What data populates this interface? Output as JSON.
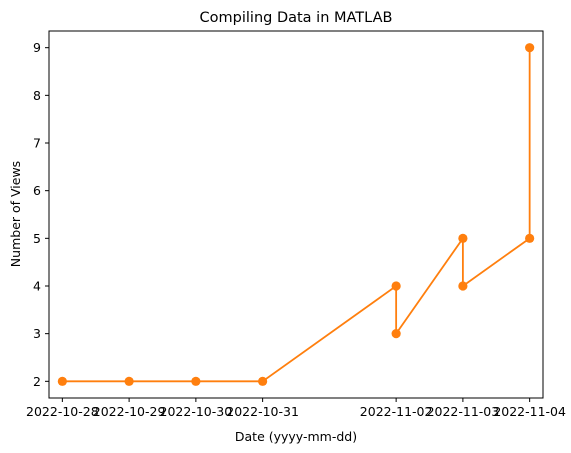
{
  "chart_data": {
    "type": "line",
    "title": "Compiling Data in MATLAB",
    "xlabel": "Date (yyyy-mm-dd)",
    "ylabel": "Number of Views",
    "x_tick_labels": [
      "2022-10-28",
      "2022-10-29",
      "2022-10-30",
      "2022-10-31",
      "2022-11-02",
      "2022-11-03",
      "2022-11-04"
    ],
    "y_ticks": [
      2,
      3,
      4,
      5,
      6,
      7,
      8,
      9
    ],
    "xlim": [
      "2022-10-27T19:12",
      "2022-11-04T04:48"
    ],
    "ylim": [
      1.65,
      9.35
    ],
    "grid": false,
    "series": [
      {
        "color": "#ff7f0e",
        "marker": "circle",
        "points": [
          {
            "x": "2022-10-28",
            "y": 2
          },
          {
            "x": "2022-10-29",
            "y": 2
          },
          {
            "x": "2022-10-30",
            "y": 2
          },
          {
            "x": "2022-10-31",
            "y": 2
          },
          {
            "x": "2022-11-02",
            "y": 4
          },
          {
            "x": "2022-11-02",
            "y": 3
          },
          {
            "x": "2022-11-03",
            "y": 5
          },
          {
            "x": "2022-11-03",
            "y": 4
          },
          {
            "x": "2022-11-04",
            "y": 5
          },
          {
            "x": "2022-11-04",
            "y": 9
          }
        ]
      }
    ]
  }
}
